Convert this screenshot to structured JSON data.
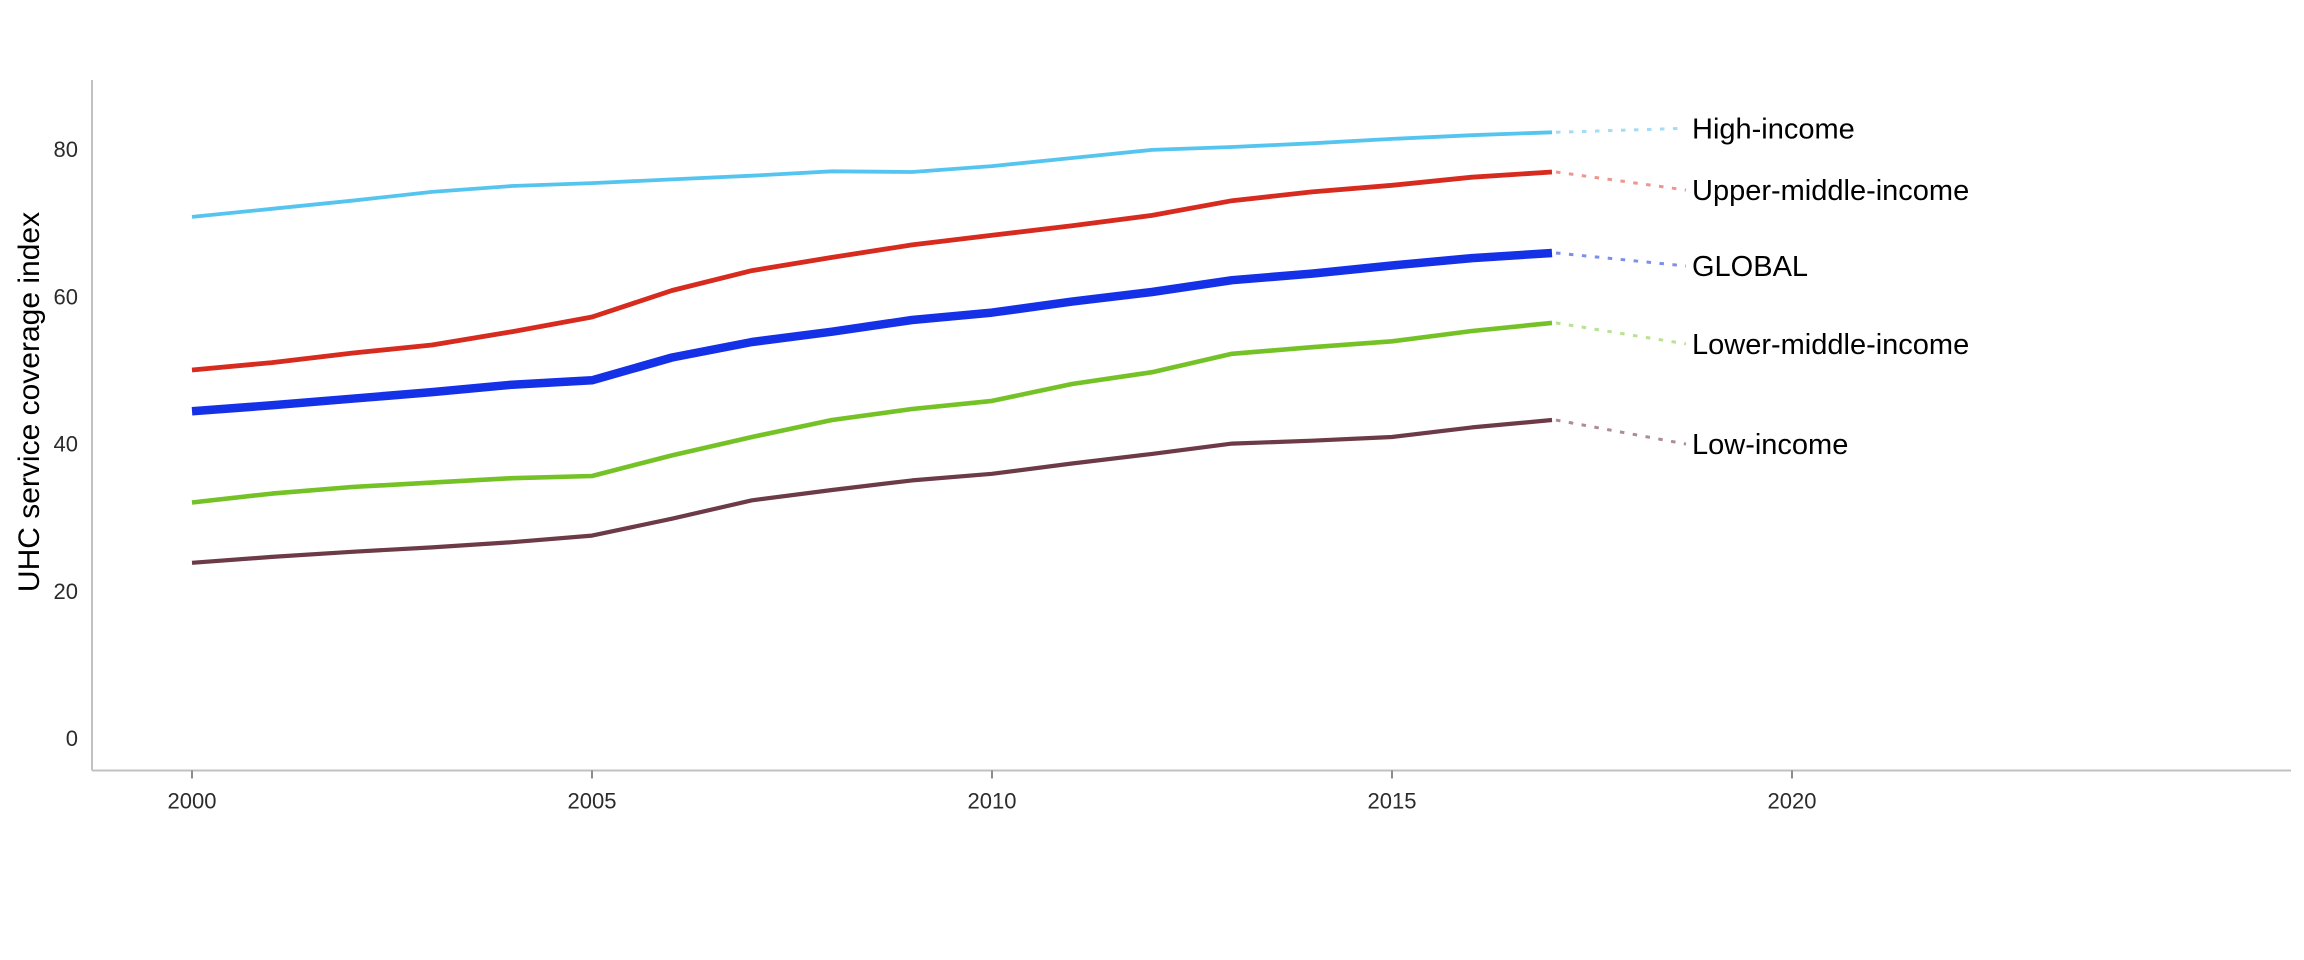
{
  "chart_data": {
    "type": "line",
    "title": "",
    "ylabel": "UHC service coverage index",
    "xlabel": "",
    "x": [
      2000,
      2001,
      2002,
      2003,
      2004,
      2005,
      2006,
      2007,
      2008,
      2009,
      2010,
      2011,
      2012,
      2013,
      2014,
      2015,
      2016,
      2017
    ],
    "x_ticks": [
      2000,
      2005,
      2010,
      2015,
      2020
    ],
    "y_ticks": [
      0,
      20,
      40,
      60,
      80
    ],
    "x_range": [
      1998.75,
      2026.2
    ],
    "y_range": [
      0,
      89.4
    ],
    "grid": false,
    "legend_position": "right-edge-direct-labels",
    "series": [
      {
        "name": "High-income",
        "color": "#55C5EF",
        "leader_color": "#A5DCF5",
        "line_width": 3.8,
        "values": [
          70.8,
          71.9,
          73.0,
          74.2,
          75.0,
          75.4,
          75.9,
          76.4,
          77.0,
          76.9,
          77.7,
          78.8,
          79.9,
          80.3,
          80.8,
          81.4,
          81.9,
          82.3
        ]
      },
      {
        "name": "Upper-middle-income",
        "color": "#D62B1E",
        "leader_color": "#EF958D",
        "line_width": 4.8,
        "values": [
          50.0,
          51.0,
          52.3,
          53.4,
          55.2,
          57.2,
          60.8,
          63.5,
          65.3,
          67.0,
          68.3,
          69.6,
          71.0,
          73.0,
          74.2,
          75.1,
          76.2,
          76.9
        ]
      },
      {
        "name": "GLOBAL",
        "color": "#1531E8",
        "leader_color": "#7C8FEA",
        "line_width": 8.5,
        "values": [
          44.4,
          45.2,
          46.1,
          47.0,
          48.0,
          48.6,
          51.7,
          53.8,
          55.2,
          56.8,
          57.8,
          59.3,
          60.6,
          62.2,
          63.1,
          64.2,
          65.2,
          65.9
        ]
      },
      {
        "name": "Lower-middle-income",
        "color": "#74C226",
        "leader_color": "#B9E295",
        "line_width": 4.6,
        "values": [
          32.0,
          33.2,
          34.1,
          34.7,
          35.3,
          35.6,
          38.4,
          40.9,
          43.2,
          44.7,
          45.8,
          48.1,
          49.7,
          52.2,
          53.1,
          53.9,
          55.3,
          56.4
        ]
      },
      {
        "name": "Low-income",
        "color": "#6D3A47",
        "leader_color": "#AE8C96",
        "line_width": 4.2,
        "values": [
          23.8,
          24.6,
          25.3,
          25.9,
          26.6,
          27.5,
          29.8,
          32.3,
          33.7,
          35.0,
          35.9,
          37.3,
          38.6,
          40.0,
          40.4,
          40.9,
          42.2,
          43.2
        ]
      }
    ],
    "axis_color": "#C1C1C1",
    "tick_mark_color": "#8C8C8C",
    "tick_label_color": "#2B2B2B",
    "label_text_color": "#000000"
  }
}
